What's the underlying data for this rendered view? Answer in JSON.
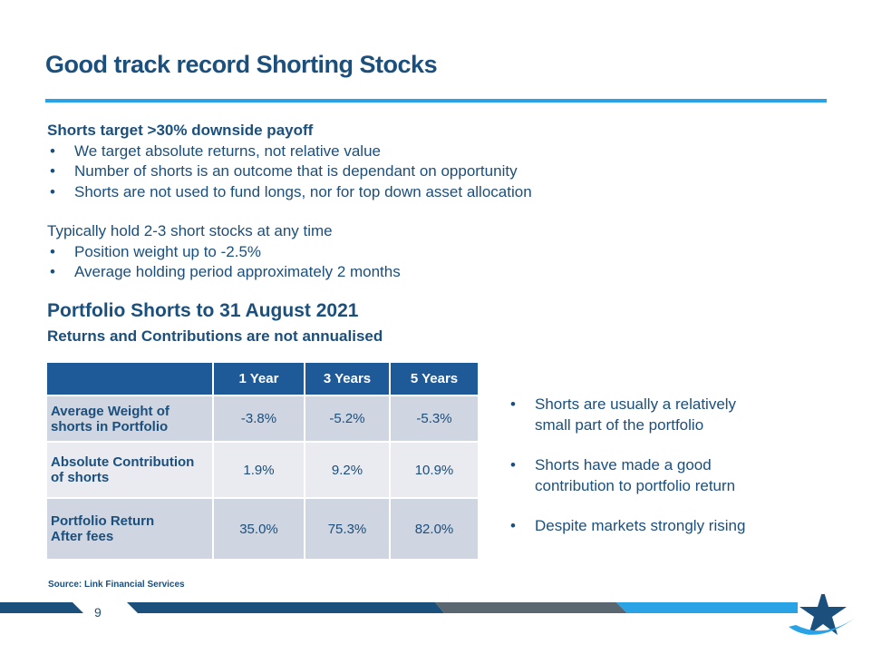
{
  "title": "Good track record Shorting Stocks",
  "section1": {
    "heading": "Shorts target >30% downside payoff",
    "bullets": [
      "We target absolute returns, not relative value",
      "Number of shorts is an outcome that is dependant on opportunity",
      "Shorts are not used to fund longs, nor for top down asset allocation"
    ]
  },
  "section2": {
    "heading": "Typically hold 2-3 short stocks at any time",
    "bullets": [
      "Position weight up to -2.5%",
      "Average holding period approximately 2 months"
    ]
  },
  "table_title": "Portfolio Shorts to 31 August 2021",
  "table_subtitle": "Returns and Contributions are not annualised",
  "table": {
    "columns": [
      "1 Year",
      "3 Years",
      "5 Years"
    ],
    "rows": [
      {
        "label": [
          "Average Weight of",
          "shorts in Portfolio"
        ],
        "values": [
          "-3.8%",
          "-5.2%",
          "-5.3%"
        ]
      },
      {
        "label": [
          "Absolute Contribution",
          "of shorts"
        ],
        "values": [
          "1.9%",
          "9.2%",
          "10.9%"
        ]
      },
      {
        "label": [
          "Portfolio Return",
          "After fees"
        ],
        "values": [
          "35.0%",
          "75.3%",
          "82.0%"
        ]
      }
    ]
  },
  "side_bullets": [
    [
      "Shorts are usually a relatively",
      "small part of the portfolio"
    ],
    [
      "Shorts have made a good",
      "contribution to portfolio return"
    ],
    [
      "Despite markets strongly rising"
    ]
  ],
  "source": "Source: Link Financial Services",
  "page_number": "9"
}
